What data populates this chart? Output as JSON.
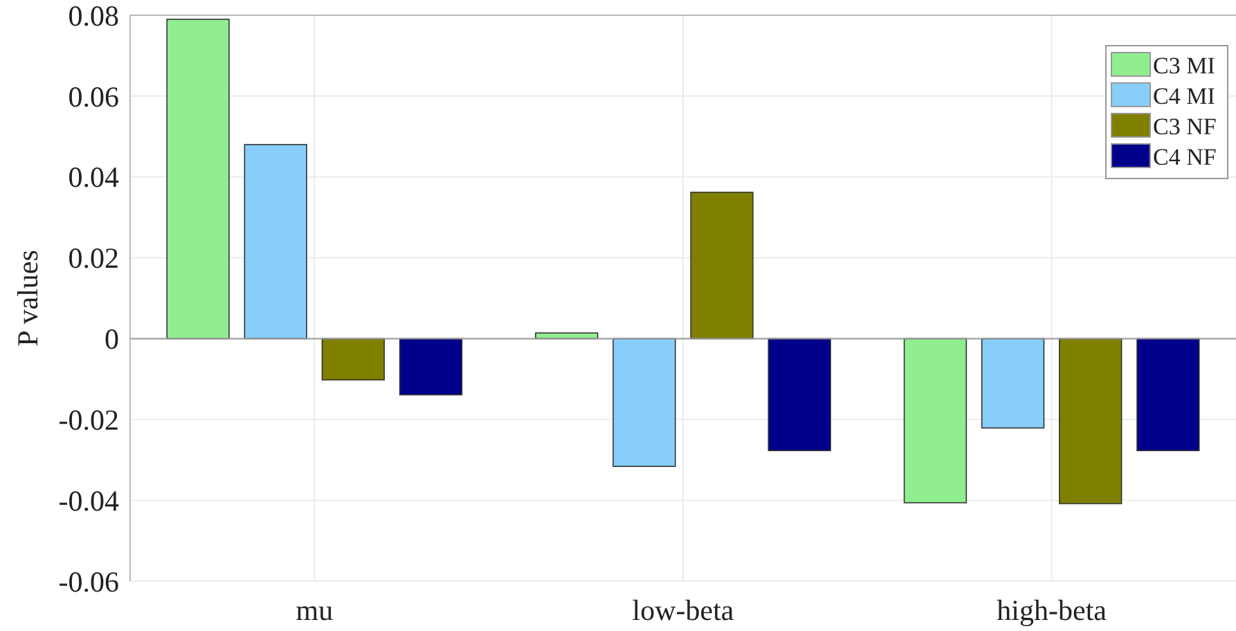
{
  "chart_data": {
    "type": "bar",
    "ylabel": "P values",
    "categories": [
      "mu",
      "low-beta",
      "high-beta"
    ],
    "series": [
      {
        "name": "C3 MI",
        "color": "#90ee90",
        "values": [
          0.079,
          0.0014,
          -0.0406
        ]
      },
      {
        "name": "C4 MI",
        "color": "#87cefa",
        "values": [
          0.048,
          -0.0316,
          -0.0221
        ]
      },
      {
        "name": "C3 NF",
        "color": "#808000",
        "values": [
          -0.0102,
          0.0362,
          -0.0408
        ]
      },
      {
        "name": "C4 NF",
        "color": "#00008b",
        "values": [
          -0.0139,
          -0.0277,
          -0.0277
        ]
      }
    ],
    "ylim": [
      -0.06,
      0.08
    ],
    "yticks": [
      -0.06,
      -0.04,
      -0.02,
      0,
      0.02,
      0.04,
      0.06,
      0.08
    ],
    "grid": true,
    "legend": "top right"
  }
}
